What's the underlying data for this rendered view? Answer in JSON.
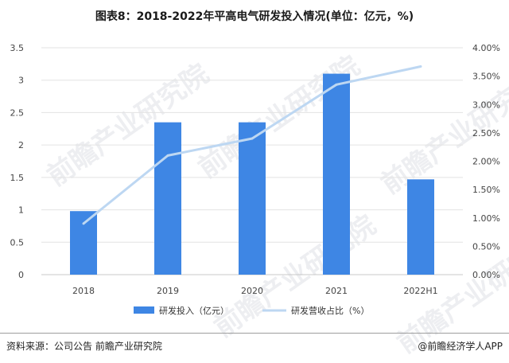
{
  "title": "图表8：2018-2022年平高电气研发投入情况(单位：亿元，%)",
  "source": "资料来源：公司公告 前瞻产业研究院",
  "brand": "@前瞻经济学人APP",
  "watermark": "前瞻产业研究院",
  "colors": {
    "bar": "#3e86e4",
    "line": "#bdd7f2",
    "grid": "#e3e3e3",
    "axis": "#c8c8c8"
  },
  "chart_data": {
    "type": "bar+line",
    "categories": [
      "2018",
      "2019",
      "2020",
      "2021",
      "2022H1"
    ],
    "series": [
      {
        "name": "研发投入（亿元）",
        "type": "bar",
        "axis": "left",
        "values": [
          0.98,
          2.35,
          2.35,
          3.1,
          1.47
        ]
      },
      {
        "name": "研发营收占比（%）",
        "type": "line",
        "axis": "right",
        "values": [
          0.9,
          2.1,
          2.4,
          3.35,
          3.67
        ]
      }
    ],
    "y_left": {
      "min": 0,
      "max": 3.5,
      "ticks": [
        "0",
        "0.5",
        "1",
        "1.5",
        "2",
        "2.5",
        "3",
        "3.5"
      ]
    },
    "y_right": {
      "min": 0,
      "max": 4,
      "ticks": [
        "0.00%",
        "0.50%",
        "1.00%",
        "1.50%",
        "2.00%",
        "2.50%",
        "3.00%",
        "3.50%",
        "4.00%"
      ]
    },
    "grid": true,
    "legend_position": "bottom"
  }
}
